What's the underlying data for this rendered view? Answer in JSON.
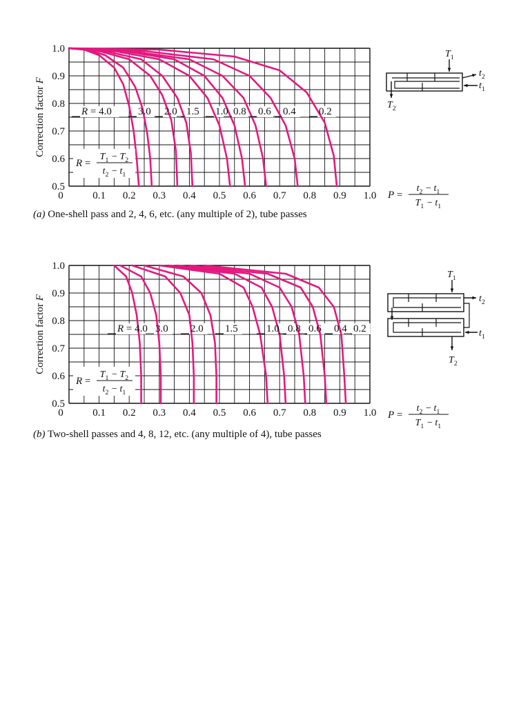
{
  "colors": {
    "curve": "#e5177f",
    "grid": "#111111",
    "text": "#111111"
  },
  "chart_data": [
    {
      "type": "line",
      "id": "a",
      "caption_label": "(a)",
      "caption_text": "One-shell pass and 2, 4, 6, etc. (any multiple of 2), tube passes",
      "ylabel": "Correction factor F",
      "xlim": [
        0,
        1.0
      ],
      "ylim": [
        0.5,
        1.0
      ],
      "xticks": [
        "0",
        "0.1",
        "0.2",
        "0.3",
        "0.4",
        "0.5",
        "0.6",
        "0.7",
        "0.8",
        "0.9",
        "1.0"
      ],
      "yticks": [
        "0.5",
        "0.6",
        "0.7",
        "0.8",
        "0.9",
        "1.0"
      ],
      "r_formula": {
        "lhs": "R =",
        "num": "T1 − T2",
        "den": "t2 − t1"
      },
      "p_formula": {
        "lhs": "P =",
        "num": "t2 − t1",
        "den": "T1 − t1"
      },
      "series": [
        {
          "name": "R = 4.0",
          "label": "R = 4.0",
          "x": [
            0.0,
            0.05,
            0.1,
            0.15,
            0.18,
            0.2,
            0.215,
            0.225,
            0.232
          ],
          "y": [
            1.0,
            0.995,
            0.975,
            0.93,
            0.87,
            0.79,
            0.7,
            0.6,
            0.5
          ]
        },
        {
          "name": "3.0",
          "label": "3.0",
          "x": [
            0.0,
            0.06,
            0.12,
            0.18,
            0.22,
            0.245,
            0.26,
            0.27,
            0.275
          ],
          "y": [
            1.0,
            0.995,
            0.975,
            0.93,
            0.86,
            0.78,
            0.69,
            0.6,
            0.5
          ]
        },
        {
          "name": "2.0",
          "label": "2.0",
          "x": [
            0.0,
            0.1,
            0.2,
            0.27,
            0.31,
            0.34,
            0.355,
            0.36
          ],
          "y": [
            1.0,
            0.99,
            0.96,
            0.9,
            0.83,
            0.74,
            0.63,
            0.5
          ]
        },
        {
          "name": "1.5",
          "label": "1.5",
          "x": [
            0.0,
            0.12,
            0.24,
            0.31,
            0.36,
            0.39,
            0.405,
            0.41
          ],
          "y": [
            1.0,
            0.99,
            0.96,
            0.9,
            0.82,
            0.73,
            0.62,
            0.5
          ]
        },
        {
          "name": "1.0",
          "label": "1.0",
          "x": [
            0.0,
            0.15,
            0.3,
            0.4,
            0.46,
            0.5,
            0.525,
            0.535
          ],
          "y": [
            1.0,
            0.99,
            0.96,
            0.9,
            0.82,
            0.72,
            0.6,
            0.5
          ]
        },
        {
          "name": "0.8",
          "label": "0.8",
          "x": [
            0.0,
            0.18,
            0.35,
            0.45,
            0.51,
            0.55,
            0.575,
            0.585
          ],
          "y": [
            1.0,
            0.99,
            0.96,
            0.9,
            0.82,
            0.72,
            0.6,
            0.5
          ]
        },
        {
          "name": "0.6",
          "label": "0.6",
          "x": [
            0.0,
            0.2,
            0.4,
            0.51,
            0.58,
            0.62,
            0.645,
            0.655
          ],
          "y": [
            1.0,
            0.99,
            0.96,
            0.9,
            0.82,
            0.72,
            0.6,
            0.5
          ]
        },
        {
          "name": "0.4",
          "label": "0.4",
          "x": [
            0.0,
            0.25,
            0.48,
            0.6,
            0.67,
            0.72,
            0.75,
            0.76
          ],
          "y": [
            1.0,
            0.99,
            0.96,
            0.9,
            0.82,
            0.72,
            0.6,
            0.5
          ]
        },
        {
          "name": "0.2",
          "label": "0.2",
          "x": [
            0.0,
            0.3,
            0.55,
            0.7,
            0.79,
            0.85,
            0.88,
            0.89
          ],
          "y": [
            1.0,
            0.995,
            0.97,
            0.92,
            0.84,
            0.73,
            0.61,
            0.5
          ]
        }
      ]
    },
    {
      "type": "line",
      "id": "b",
      "caption_label": "(b)",
      "caption_text": "Two-shell passes and 4, 8, 12, etc. (any multiple of 4), tube passes",
      "ylabel": "Correction factor F",
      "xlim": [
        0,
        1.0
      ],
      "ylim": [
        0.5,
        1.0
      ],
      "xticks": [
        "0",
        "0.1",
        "0.2",
        "0.3",
        "0.4",
        "0.5",
        "0.6",
        "0.7",
        "0.8",
        "0.9",
        "1.0"
      ],
      "yticks": [
        "0.5",
        "0.6",
        "0.7",
        "0.8",
        "0.9",
        "1.0"
      ],
      "r_formula": {
        "lhs": "R =",
        "num": "T1 − T2",
        "den": "t2 − t1"
      },
      "p_formula": {
        "lhs": "P =",
        "num": "t2 − t1",
        "den": "T1 − t1"
      },
      "series": [
        {
          "name": "R = 4.0",
          "label": "R = 4.0",
          "x": [
            0.15,
            0.19,
            0.21,
            0.225,
            0.235,
            0.24,
            0.24
          ],
          "y": [
            1.0,
            0.96,
            0.9,
            0.82,
            0.72,
            0.6,
            0.5
          ]
        },
        {
          "name": "3.0",
          "label": "3.0",
          "x": [
            0.17,
            0.24,
            0.27,
            0.29,
            0.3,
            0.305,
            0.305
          ],
          "y": [
            1.0,
            0.96,
            0.9,
            0.82,
            0.72,
            0.6,
            0.5
          ]
        },
        {
          "name": "2.0",
          "label": "2.0",
          "x": [
            0.21,
            0.32,
            0.37,
            0.4,
            0.41,
            0.415,
            0.415
          ],
          "y": [
            1.0,
            0.96,
            0.9,
            0.82,
            0.72,
            0.6,
            0.5
          ]
        },
        {
          "name": "1.5",
          "label": "1.5",
          "x": [
            0.25,
            0.38,
            0.44,
            0.47,
            0.485,
            0.49,
            0.49
          ],
          "y": [
            1.0,
            0.96,
            0.9,
            0.82,
            0.72,
            0.6,
            0.5
          ]
        },
        {
          "name": "1.0",
          "label": "1.0",
          "x": [
            0.3,
            0.5,
            0.58,
            0.61,
            0.635,
            0.655,
            0.66
          ],
          "y": [
            1.0,
            0.97,
            0.92,
            0.85,
            0.75,
            0.6,
            0.5
          ]
        },
        {
          "name": "0.8",
          "label": "0.8",
          "x": [
            0.33,
            0.55,
            0.64,
            0.675,
            0.7,
            0.715,
            0.72
          ],
          "y": [
            1.0,
            0.97,
            0.92,
            0.85,
            0.75,
            0.6,
            0.5
          ]
        },
        {
          "name": "0.6",
          "label": "0.6",
          "x": [
            0.36,
            0.6,
            0.7,
            0.74,
            0.765,
            0.78,
            0.785
          ],
          "y": [
            1.0,
            0.97,
            0.92,
            0.85,
            0.75,
            0.6,
            0.5
          ]
        },
        {
          "name": "0.4",
          "label": "0.4",
          "x": [
            0.4,
            0.66,
            0.77,
            0.81,
            0.835,
            0.85,
            0.855
          ],
          "y": [
            1.0,
            0.97,
            0.92,
            0.85,
            0.75,
            0.6,
            0.5
          ]
        },
        {
          "name": "0.2",
          "label": "0.2",
          "x": [
            0.45,
            0.72,
            0.83,
            0.88,
            0.905,
            0.915,
            0.92
          ],
          "y": [
            1.0,
            0.97,
            0.92,
            0.85,
            0.75,
            0.6,
            0.5
          ]
        }
      ]
    }
  ],
  "diagrams": {
    "a": {
      "T1": "T1",
      "T2": "T2",
      "t1": "t1",
      "t2": "t2"
    },
    "b": {
      "T1": "T1",
      "T2": "T2",
      "t1": "t1",
      "t2": "t2"
    }
  }
}
